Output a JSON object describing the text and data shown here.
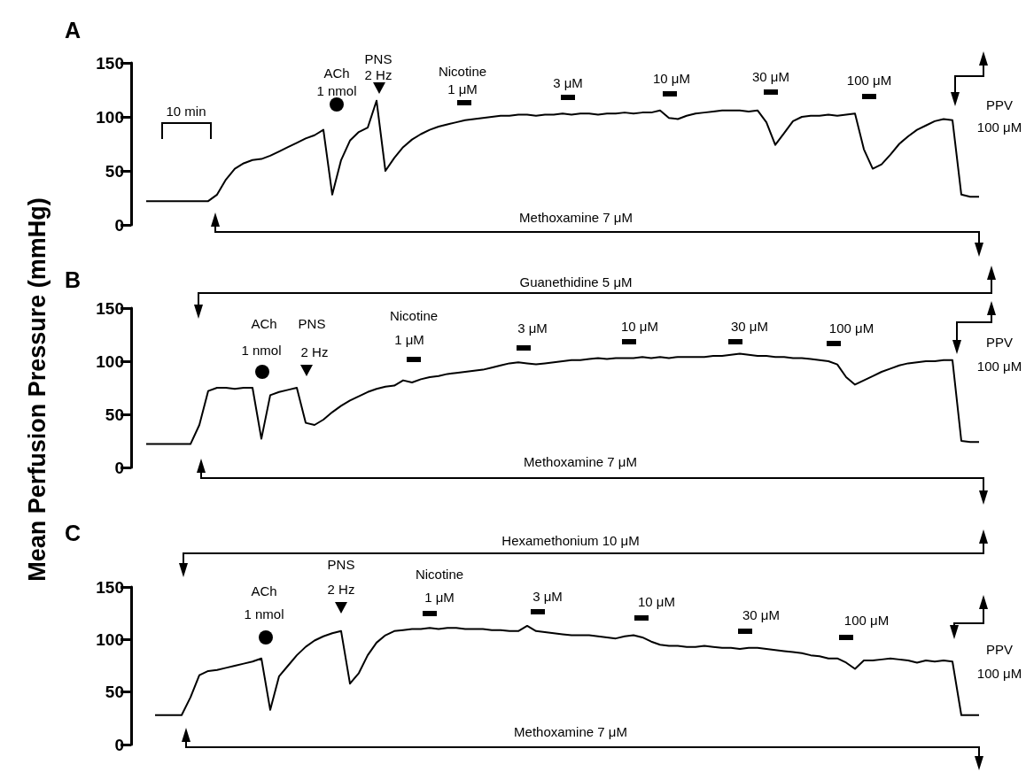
{
  "chart_data": [
    {
      "type": "line",
      "title": "A",
      "categories": [
        null,
        null,
        null,
        null,
        null,
        null,
        null,
        null,
        null,
        null,
        null,
        null,
        null,
        null,
        null,
        null,
        null,
        null,
        null,
        null,
        null,
        null,
        null,
        null,
        null,
        null,
        null,
        null,
        null,
        null,
        null,
        null,
        null,
        null,
        null,
        null,
        null,
        null,
        null,
        null,
        null,
        null,
        null,
        null,
        null,
        null,
        null,
        null,
        null,
        null,
        null,
        null,
        null,
        null,
        null,
        null,
        null,
        null,
        null,
        null,
        null,
        null,
        null,
        null,
        null,
        null,
        null,
        null,
        null,
        null,
        null,
        null,
        null,
        null,
        null,
        null,
        null,
        null,
        null,
        null,
        null,
        null,
        null,
        null,
        null,
        null,
        null,
        null,
        null,
        null,
        null,
        null,
        null,
        null,
        null,
        null
      ],
      "series": [
        {
          "color": "#000000",
          "values": [
            22,
            22,
            22,
            22,
            22,
            22,
            22,
            22,
            28,
            42,
            52,
            57,
            60,
            61,
            64,
            68,
            72,
            76,
            80,
            83,
            88,
            28,
            60,
            78,
            86,
            90,
            115,
            50,
            62,
            72,
            79,
            84,
            88,
            91,
            93,
            95,
            97,
            98,
            99,
            100,
            101,
            101,
            102,
            102,
            101,
            102,
            102,
            103,
            102,
            103,
            103,
            102,
            103,
            103,
            104,
            103,
            104,
            104,
            106,
            99,
            98,
            101,
            103,
            104,
            105,
            106,
            106,
            106,
            105,
            106,
            95,
            74,
            85,
            96,
            100,
            101,
            101,
            102,
            101,
            102,
            103,
            70,
            52,
            56,
            65,
            75,
            82,
            88,
            92,
            96,
            98,
            97,
            28,
            26,
            26,
            null
          ]
        }
      ],
      "ylim": [
        0,
        150
      ],
      "yticks": [
        0,
        50,
        100,
        150
      ],
      "tick_labels": "y",
      "annotations": [
        "10 min",
        "ACh",
        "1 nmol",
        "PNS",
        "2 Hz",
        "Nicotine",
        "1 μM",
        "3 μM",
        "10 μM",
        "30 μM",
        "100 μM",
        "PPV",
        "100 μM",
        "Methoxamine 7 μM"
      ]
    },
    {
      "type": "line",
      "title": "B",
      "ylabel": "Mean Perfusion Pressure (mmHg)",
      "categories": [
        null,
        null,
        null,
        null,
        null,
        null,
        null,
        null,
        null,
        null,
        null,
        null,
        null,
        null,
        null,
        null,
        null,
        null,
        null,
        null,
        null,
        null,
        null,
        null,
        null,
        null,
        null,
        null,
        null,
        null,
        null,
        null,
        null,
        null,
        null,
        null,
        null,
        null,
        null,
        null,
        null,
        null,
        null,
        null,
        null,
        null,
        null,
        null,
        null,
        null,
        null,
        null,
        null,
        null,
        null,
        null,
        null,
        null,
        null,
        null,
        null,
        null,
        null,
        null,
        null,
        null,
        null,
        null,
        null,
        null,
        null,
        null,
        null,
        null,
        null,
        null,
        null,
        null,
        null,
        null,
        null,
        null,
        null,
        null,
        null,
        null,
        null,
        null,
        null,
        null,
        null,
        null,
        null,
        null,
        null,
        null
      ],
      "series": [
        {
          "color": "#000000",
          "values": [
            22,
            22,
            22,
            22,
            22,
            22,
            40,
            72,
            75,
            75,
            74,
            75,
            75,
            27,
            68,
            71,
            73,
            75,
            42,
            40,
            45,
            52,
            58,
            63,
            67,
            71,
            74,
            76,
            77,
            82,
            80,
            83,
            85,
            86,
            88,
            89,
            90,
            91,
            92,
            94,
            96,
            98,
            99,
            98,
            97,
            98,
            99,
            100,
            101,
            101,
            102,
            103,
            102,
            103,
            103,
            103,
            104,
            103,
            104,
            103,
            104,
            104,
            104,
            104,
            105,
            105,
            106,
            107,
            106,
            105,
            105,
            104,
            104,
            103,
            103,
            102,
            101,
            100,
            97,
            85,
            78,
            82,
            86,
            90,
            93,
            96,
            98,
            99,
            100,
            100,
            101,
            101,
            25,
            24,
            24,
            null
          ]
        }
      ],
      "ylim": [
        0,
        150
      ],
      "yticks": [
        0,
        50,
        100,
        150
      ],
      "tick_labels": "y",
      "annotations": [
        "Guanethidine 5 μM",
        "ACh",
        "1 nmol",
        "PNS",
        "2 Hz",
        "Nicotine",
        "1 μM",
        "3 μM",
        "10 μM",
        "30 μM",
        "100 μM",
        "PPV",
        "100 μM",
        "Methoxamine 7 μM"
      ]
    },
    {
      "type": "line",
      "title": "C",
      "categories": [
        null,
        null,
        null,
        null,
        null,
        null,
        null,
        null,
        null,
        null,
        null,
        null,
        null,
        null,
        null,
        null,
        null,
        null,
        null,
        null,
        null,
        null,
        null,
        null,
        null,
        null,
        null,
        null,
        null,
        null,
        null,
        null,
        null,
        null,
        null,
        null,
        null,
        null,
        null,
        null,
        null,
        null,
        null,
        null,
        null,
        null,
        null,
        null,
        null,
        null,
        null,
        null,
        null,
        null,
        null,
        null,
        null,
        null,
        null,
        null,
        null,
        null,
        null,
        null,
        null,
        null,
        null,
        null,
        null,
        null,
        null,
        null,
        null,
        null,
        null,
        null,
        null,
        null,
        null,
        null,
        null,
        null,
        null,
        null,
        null,
        null,
        null,
        null,
        null,
        null,
        null,
        null,
        null,
        null,
        null,
        null
      ],
      "series": [
        {
          "color": "#000000",
          "values": [
            null,
            28,
            28,
            28,
            28,
            45,
            66,
            70,
            71,
            73,
            75,
            77,
            79,
            82,
            33,
            65,
            75,
            85,
            93,
            99,
            103,
            106,
            108,
            58,
            68,
            85,
            97,
            104,
            108,
            109,
            110,
            110,
            111,
            110,
            111,
            111,
            110,
            110,
            110,
            109,
            109,
            108,
            108,
            113,
            108,
            107,
            106,
            105,
            104,
            104,
            104,
            103,
            102,
            101,
            103,
            104,
            102,
            98,
            95,
            94,
            94,
            93,
            93,
            94,
            93,
            92,
            92,
            91,
            92,
            92,
            91,
            90,
            89,
            88,
            87,
            85,
            84,
            82,
            82,
            78,
            72,
            80,
            80,
            81,
            82,
            81,
            80,
            78,
            80,
            79,
            80,
            79,
            28,
            28,
            28,
            null
          ]
        }
      ],
      "ylim": [
        0,
        150
      ],
      "yticks": [
        0,
        50,
        100,
        150
      ],
      "tick_labels": "y",
      "annotations": [
        "Hexamethonium 10 μM",
        "ACh",
        "1 nmol",
        "PNS",
        "2 Hz",
        "Nicotine",
        "1 μM",
        "3 μM",
        "10 μM",
        "30 μM",
        "100 μM",
        "PPV",
        "100 μM",
        "Methoxamine 7 μM"
      ]
    }
  ]
}
